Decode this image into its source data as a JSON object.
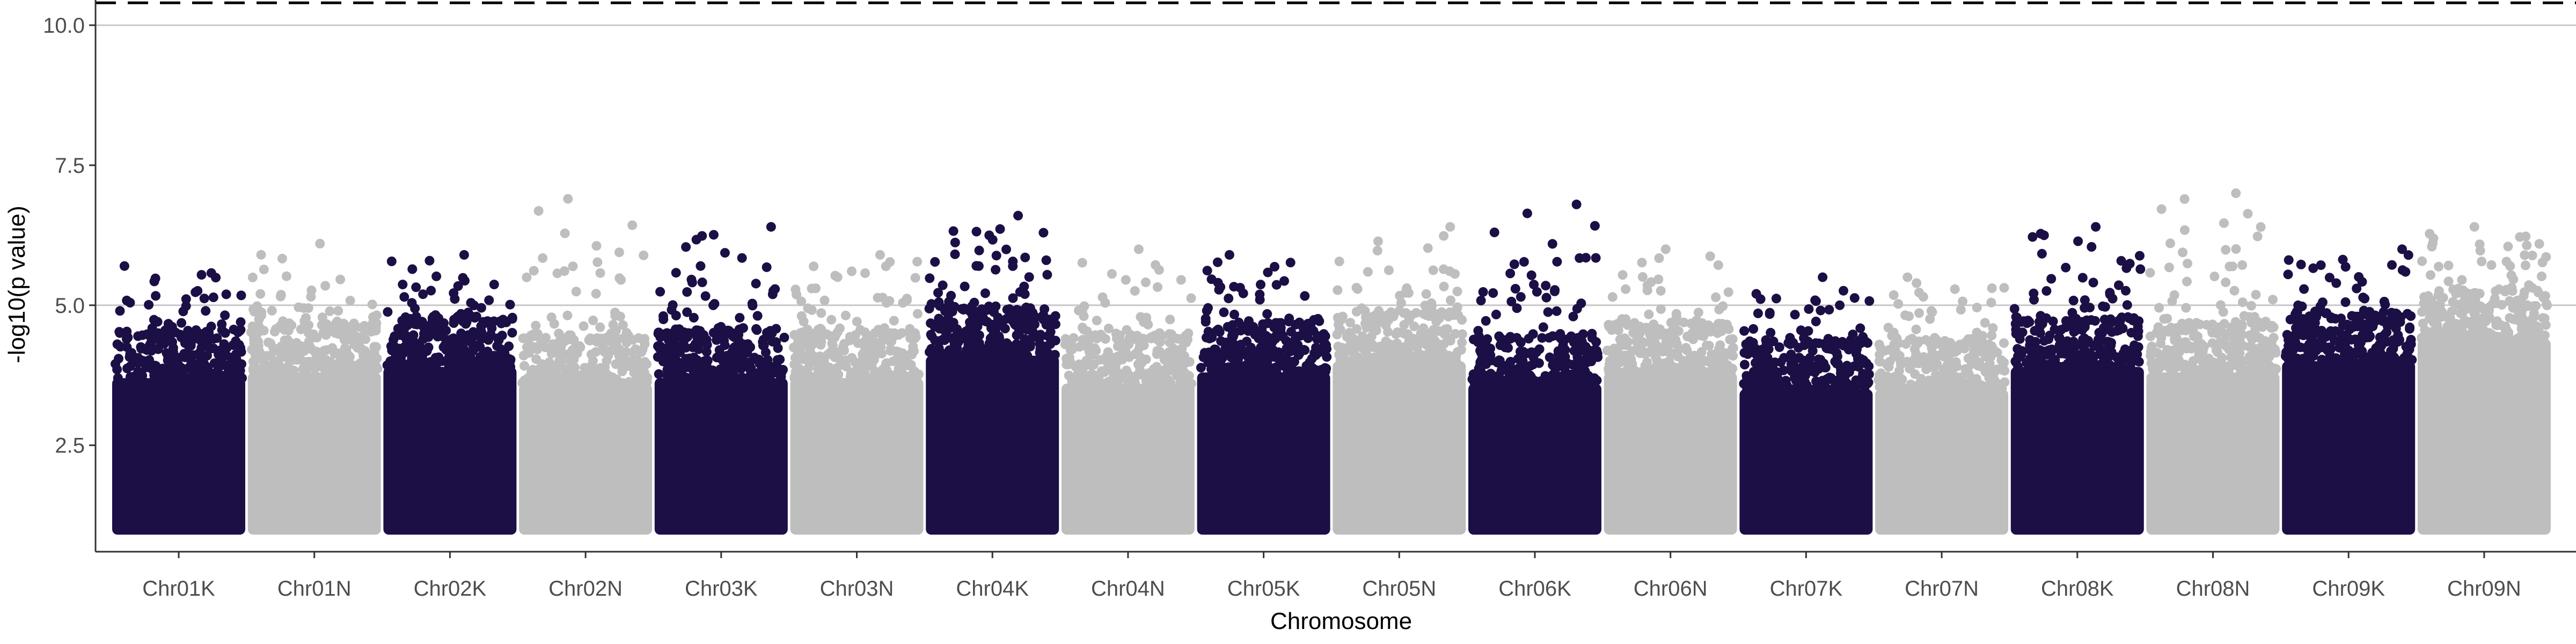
{
  "chart_data": {
    "type": "scatter",
    "title": "",
    "xlabel": "Chromosome",
    "ylabel": "-log10(p value)",
    "ylim": [
      0.6,
      10.45
    ],
    "yticks": [
      2.5,
      5.0,
      7.5,
      10.0
    ],
    "ytick_labels": [
      "2.5",
      "5.0",
      "7.5",
      "10.0"
    ],
    "grid": "horizontal",
    "legend": "none",
    "threshold_line": {
      "y": 10.4,
      "style": "dashed",
      "color": "#000000"
    },
    "reference_lines": [
      5.0,
      10.0
    ],
    "colors": {
      "dark": "#1c0f45",
      "light": "#bebebe"
    },
    "categories": [
      "Chr01K",
      "Chr01N",
      "Chr02K",
      "Chr02N",
      "Chr03K",
      "Chr03N",
      "Chr04K",
      "Chr04N",
      "Chr05K",
      "Chr05N",
      "Chr06K",
      "Chr06N",
      "Chr07K",
      "Chr07N",
      "Chr08K",
      "Chr08N",
      "Chr09K",
      "Chr09N"
    ],
    "series": [
      {
        "category": "Chr01K",
        "color": "dark",
        "dense_top": 4.2,
        "max": 5.7
      },
      {
        "category": "Chr01N",
        "color": "light",
        "dense_top": 4.3,
        "max": 6.1
      },
      {
        "category": "Chr02K",
        "color": "dark",
        "dense_top": 4.4,
        "max": 5.9
      },
      {
        "category": "Chr02N",
        "color": "light",
        "dense_top": 4.1,
        "max": 6.9
      },
      {
        "category": "Chr03K",
        "color": "dark",
        "dense_top": 4.2,
        "max": 6.4
      },
      {
        "category": "Chr03N",
        "color": "light",
        "dense_top": 4.2,
        "max": 5.9
      },
      {
        "category": "Chr04K",
        "color": "dark",
        "dense_top": 4.6,
        "max": 6.6
      },
      {
        "category": "Chr04N",
        "color": "light",
        "dense_top": 4.1,
        "max": 6.0
      },
      {
        "category": "Chr05K",
        "color": "dark",
        "dense_top": 4.3,
        "max": 5.9
      },
      {
        "category": "Chr05N",
        "color": "light",
        "dense_top": 4.5,
        "max": 6.4
      },
      {
        "category": "Chr06K",
        "color": "dark",
        "dense_top": 4.1,
        "max": 6.8
      },
      {
        "category": "Chr06N",
        "color": "light",
        "dense_top": 4.3,
        "max": 6.0
      },
      {
        "category": "Chr07K",
        "color": "dark",
        "dense_top": 4.0,
        "max": 5.5
      },
      {
        "category": "Chr07N",
        "color": "light",
        "dense_top": 4.0,
        "max": 5.5
      },
      {
        "category": "Chr08K",
        "color": "dark",
        "dense_top": 4.4,
        "max": 6.4
      },
      {
        "category": "Chr08N",
        "color": "light",
        "dense_top": 4.3,
        "max": 7.0
      },
      {
        "category": "Chr09K",
        "color": "dark",
        "dense_top": 4.5,
        "max": 6.0
      },
      {
        "category": "Chr09N",
        "color": "light",
        "dense_top": 4.9,
        "max": 6.4
      }
    ],
    "baseline": 1.0
  }
}
